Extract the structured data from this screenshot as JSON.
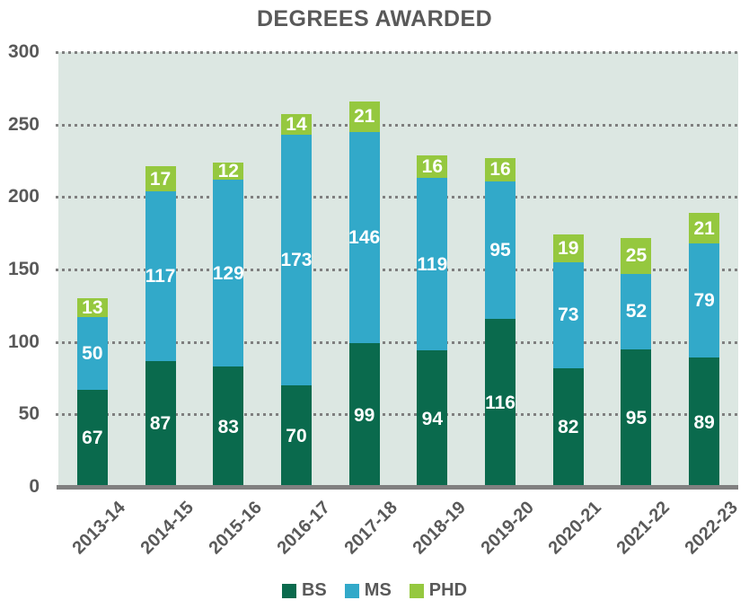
{
  "title": "DEGREES AWARDED",
  "chart_data": {
    "type": "bar",
    "stacked": true,
    "title": "DEGREES AWARDED",
    "categories": [
      "2013-14",
      "2014-15",
      "2015-16",
      "2016-17",
      "2017-18",
      "2018-19",
      "2019-20",
      "2020-21",
      "2021-22",
      "2022-23"
    ],
    "series": [
      {
        "name": "BS",
        "color": "#0A6A4D",
        "values": [
          67,
          87,
          83,
          70,
          99,
          94,
          116,
          82,
          95,
          89
        ]
      },
      {
        "name": "MS",
        "color": "#32A9C9",
        "values": [
          50,
          117,
          129,
          173,
          146,
          119,
          95,
          73,
          52,
          79
        ]
      },
      {
        "name": "PHD",
        "color": "#95C83F",
        "values": [
          13,
          17,
          12,
          14,
          21,
          16,
          16,
          19,
          25,
          21
        ]
      }
    ],
    "totals": [
      130,
      221,
      224,
      257,
      266,
      229,
      227,
      174,
      172,
      189
    ],
    "ylim": [
      0,
      300
    ],
    "yticks": [
      0,
      50,
      100,
      150,
      200,
      250,
      300
    ],
    "grid": "horizontal-dotted",
    "legend_position": "bottom",
    "value_labels": "white-bold-centered-in-segment",
    "colors": {
      "plot_background": "#DCE7E2",
      "gridline": "#7F7F7F",
      "axis_line": "#808080",
      "axis_text": "#595959",
      "value_label_text": "#FFFFFF"
    }
  }
}
